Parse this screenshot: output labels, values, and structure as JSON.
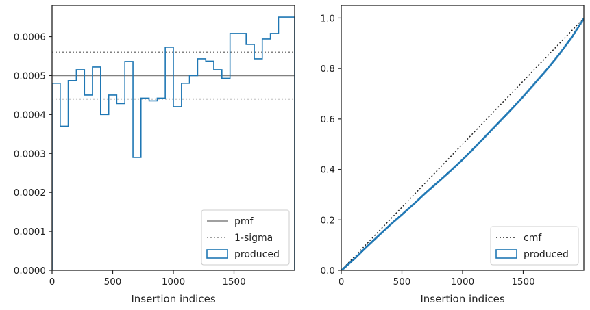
{
  "chart_data": [
    {
      "type": "line",
      "chart_kind": "histogram (step)",
      "xlabel": "Insertion indices",
      "ylabel": "",
      "xlim": [
        0,
        2000
      ],
      "ylim": [
        0,
        0.00068
      ],
      "x_ticks": [
        0,
        500,
        1000,
        1500
      ],
      "x_tick_labels": [
        "0",
        "500",
        "1000",
        "1500"
      ],
      "y_ticks": [
        0,
        0.0001,
        0.0002,
        0.0003,
        0.0004,
        0.0005,
        0.0006
      ],
      "y_tick_labels": [
        "0.0000",
        "0.0001",
        "0.0002",
        "0.0003",
        "0.0004",
        "0.0005",
        "0.0006"
      ],
      "grid": false,
      "legend_position": "lower-right",
      "series": [
        {
          "name": "pmf",
          "style": "solid",
          "color": "#808080",
          "y": 0.0005
        },
        {
          "name": "1-sigma",
          "style": "dotted",
          "color": "#808080",
          "y": [
            0.00044,
            0.00056
          ]
        },
        {
          "name": "produced",
          "style": "step",
          "color": "#1f77b4",
          "bin_edges": [
            0,
            67,
            133,
            200,
            267,
            333,
            400,
            467,
            533,
            600,
            667,
            733,
            800,
            867,
            933,
            1000,
            1067,
            1133,
            1200,
            1267,
            1333,
            1400,
            1467,
            1533,
            1600,
            1667,
            1733,
            1800,
            1867,
            1933,
            2000
          ],
          "values": [
            0.00048,
            0.00037,
            0.000487,
            0.000515,
            0.00045,
            0.000522,
            0.0004,
            0.00045,
            0.000428,
            0.000536,
            0.00029,
            0.000442,
            0.000435,
            0.000442,
            0.000573,
            0.00042,
            0.00048,
            0.0005,
            0.000543,
            0.000537,
            0.000515,
            0.000493,
            0.000608,
            0.000608,
            0.00058,
            0.000543,
            0.000594,
            0.000608,
            0.00065,
            0.00065
          ]
        }
      ]
    },
    {
      "type": "line",
      "chart_kind": "cumulative distribution",
      "xlabel": "Insertion indices",
      "ylabel": "",
      "xlim": [
        0,
        2000
      ],
      "ylim": [
        0,
        1.05
      ],
      "x_ticks": [
        0,
        500,
        1000,
        1500
      ],
      "x_tick_labels": [
        "0",
        "500",
        "1000",
        "1500"
      ],
      "y_ticks": [
        0,
        0.2,
        0.4,
        0.6,
        0.8,
        1.0
      ],
      "y_tick_labels": [
        "0.0",
        "0.2",
        "0.4",
        "0.6",
        "0.8",
        "1.0"
      ],
      "grid": false,
      "legend_position": "lower-right",
      "series": [
        {
          "name": "cmf",
          "style": "dotted",
          "color": "#222222",
          "x": [
            0,
            2000
          ],
          "y": [
            0,
            1.0
          ]
        },
        {
          "name": "produced",
          "style": "step",
          "color": "#1f77b4",
          "x": [
            0,
            100,
            200,
            300,
            400,
            500,
            600,
            700,
            800,
            900,
            1000,
            1100,
            1200,
            1300,
            1400,
            1500,
            1600,
            1700,
            1800,
            1900,
            2000
          ],
          "y": [
            0,
            0.043,
            0.09,
            0.135,
            0.18,
            0.222,
            0.265,
            0.31,
            0.352,
            0.395,
            0.44,
            0.488,
            0.538,
            0.588,
            0.638,
            0.69,
            0.745,
            0.8,
            0.86,
            0.925,
            1.0
          ]
        }
      ]
    }
  ]
}
